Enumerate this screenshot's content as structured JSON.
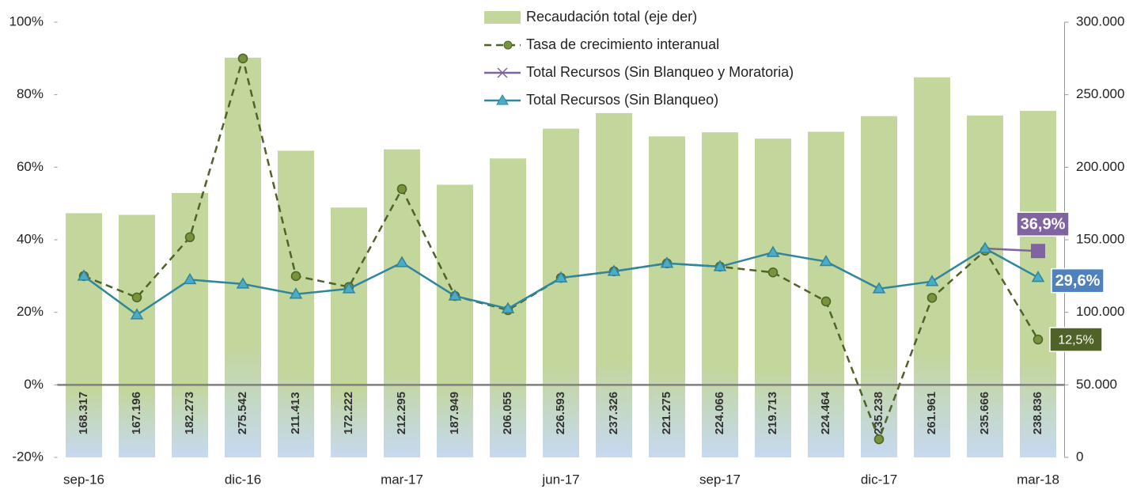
{
  "chart_data": {
    "type": "combo",
    "categories": [
      "sep-16",
      null,
      null,
      "dic-16",
      null,
      null,
      "mar-17",
      null,
      null,
      "jun-17",
      null,
      null,
      "sep-17",
      null,
      null,
      "dic-17",
      null,
      null,
      "mar-18"
    ],
    "series": [
      {
        "name": "Recaudación total (eje der)",
        "type": "bar",
        "axis": "y2",
        "color": "#c3d69b",
        "values": [
          168317,
          167196,
          182273,
          275542,
          211413,
          172222,
          212295,
          187949,
          206055,
          226593,
          237326,
          221275,
          224066,
          219713,
          224464,
          235238,
          261961,
          235666,
          238836
        ],
        "value_labels": [
          "168.317",
          "167.196",
          "182.273",
          "275.542",
          "211.413",
          "172.222",
          "212.295",
          "187.949",
          "206.055",
          "226.593",
          "237.326",
          "221.275",
          "224.066",
          "219.713",
          "224.464",
          "235.238",
          "261.961",
          "235.666",
          "238.836"
        ]
      },
      {
        "name": "Tasa de crecimiento interanual",
        "type": "line",
        "dashed": true,
        "marker": "circle",
        "color": "#4f6228",
        "values": [
          30,
          24.1,
          40.7,
          90,
          30,
          27,
          54,
          24.5,
          20.6,
          29.5,
          31.3,
          33.5,
          32.6,
          31,
          23,
          -15,
          24,
          37,
          12.5
        ],
        "value_labels": [
          null,
          null,
          null,
          null,
          null,
          null,
          null,
          null,
          null,
          null,
          null,
          null,
          null,
          null,
          null,
          null,
          null,
          null,
          "12,5%"
        ]
      },
      {
        "name": "Total Recursos (Sin Blanqueo y Moratoria)",
        "type": "line",
        "marker": "square",
        "color": "#8064a2",
        "values": [
          null,
          null,
          null,
          null,
          null,
          null,
          null,
          null,
          null,
          null,
          null,
          null,
          null,
          null,
          null,
          null,
          null,
          37.6,
          36.9
        ],
        "value_labels": [
          null,
          null,
          null,
          null,
          null,
          null,
          null,
          null,
          null,
          null,
          null,
          null,
          null,
          null,
          null,
          null,
          null,
          null,
          "36,9%"
        ]
      },
      {
        "name": "Total Recursos (Sin Blanqueo)",
        "type": "line",
        "marker": "triangle",
        "color": "#31859c",
        "values": [
          30,
          19.3,
          29,
          27.8,
          25,
          26.5,
          33.7,
          24.5,
          21,
          29.5,
          31.3,
          33.5,
          32.6,
          36.5,
          34,
          26.5,
          28.5,
          37.6,
          29.6
        ],
        "value_labels": [
          null,
          null,
          null,
          null,
          null,
          null,
          null,
          null,
          null,
          null,
          null,
          null,
          null,
          null,
          null,
          null,
          null,
          null,
          "29,6%"
        ]
      }
    ],
    "ylim": [
      -20,
      100
    ],
    "yticks": [
      {
        "value": -20,
        "label": "-20%"
      },
      {
        "value": 0,
        "label": "0%"
      },
      {
        "value": 20,
        "label": "20%"
      },
      {
        "value": 40,
        "label": "40%"
      },
      {
        "value": 60,
        "label": "60%"
      },
      {
        "value": 80,
        "label": "80%"
      },
      {
        "value": 100,
        "label": "100%"
      }
    ],
    "y2lim": [
      0,
      300000
    ],
    "y2ticks": [
      {
        "value": 0,
        "label": "0"
      },
      {
        "value": 50000,
        "label": "50.000"
      },
      {
        "value": 100000,
        "label": "100.000"
      },
      {
        "value": 150000,
        "label": "150.000"
      },
      {
        "value": 200000,
        "label": "200.000"
      },
      {
        "value": 250000,
        "label": "250.000"
      },
      {
        "value": 300000,
        "label": "300.000"
      }
    ],
    "grid": false,
    "legend": "top"
  }
}
